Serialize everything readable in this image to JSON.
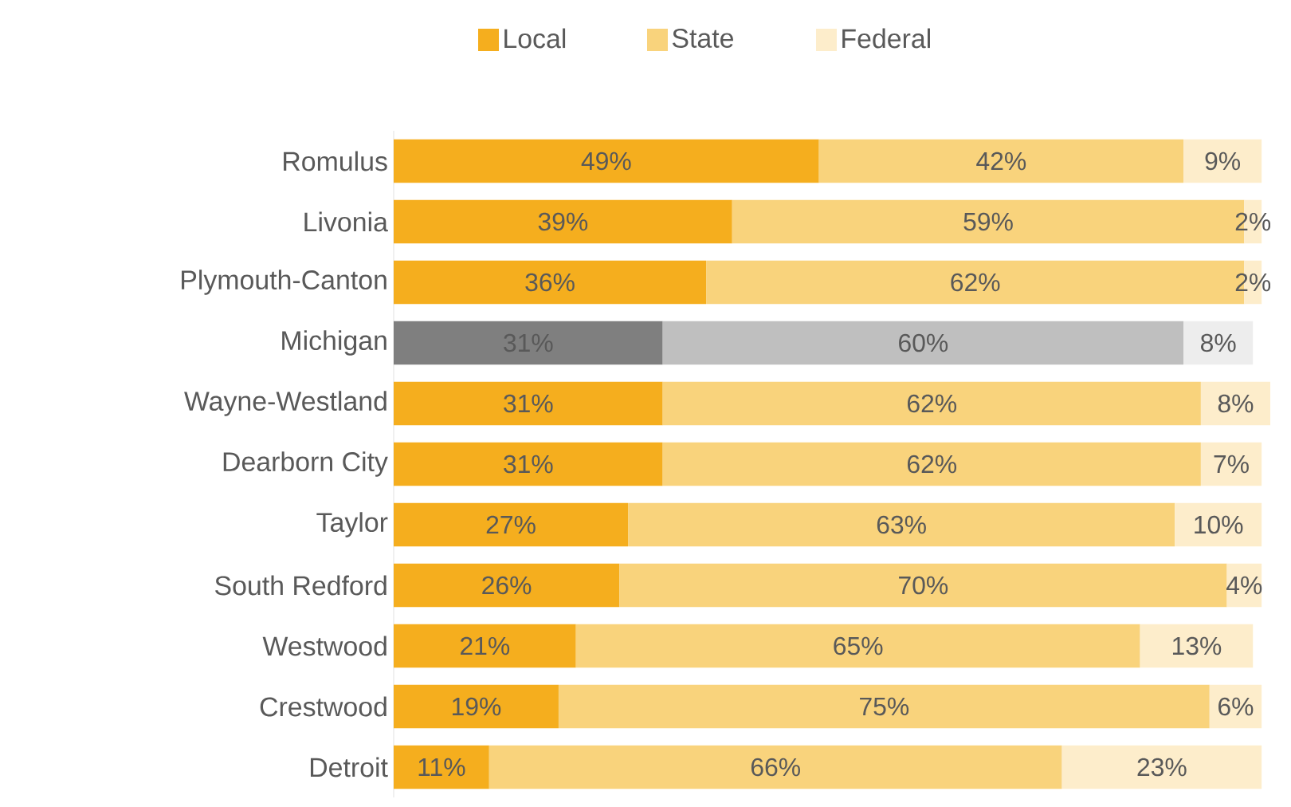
{
  "chart_data": {
    "type": "bar",
    "orientation": "horizontal",
    "stacked": true,
    "legend": "top",
    "xlim": [
      0,
      101
    ],
    "categories": [
      "Romulus",
      "Livonia",
      "Plymouth-Canton",
      "Michigan",
      "Wayne-Westland",
      "Dearborn City",
      "Taylor",
      "South Redford",
      "Westwood",
      "Crestwood",
      "Detroit"
    ],
    "series": [
      {
        "name": "Local",
        "color": "#f5ae1e",
        "values": [
          49,
          39,
          36,
          31,
          31,
          31,
          27,
          26,
          21,
          19,
          11
        ],
        "colors": [
          "#f5ae1e",
          "#f5ae1e",
          "#f5ae1e",
          "#7f7f7f",
          "#f5ae1e",
          "#f5ae1e",
          "#f5ae1e",
          "#f5ae1e",
          "#f5ae1e",
          "#f5ae1e",
          "#f5ae1e"
        ],
        "value_labels": [
          "49%",
          "39%",
          "36%",
          "31%",
          "31%",
          "31%",
          "27%",
          "26%",
          "21%",
          "19%",
          "11%"
        ]
      },
      {
        "name": "State",
        "color": "#f9d37c",
        "values": [
          42,
          59,
          62,
          60,
          62,
          62,
          63,
          70,
          65,
          75,
          66
        ],
        "colors": [
          "#f9d37c",
          "#f9d37c",
          "#f9d37c",
          "#bfbfbf",
          "#f9d37c",
          "#f9d37c",
          "#f9d37c",
          "#f9d37c",
          "#f9d37c",
          "#f9d37c",
          "#f9d37c"
        ],
        "value_labels": [
          "42%",
          "59%",
          "62%",
          "60%",
          "62%",
          "62%",
          "63%",
          "70%",
          "65%",
          "75%",
          "66%"
        ]
      },
      {
        "name": "Federal",
        "color": "#fdedcb",
        "values": [
          9,
          2,
          2,
          8,
          8,
          7,
          10,
          4,
          13,
          6,
          23
        ],
        "colors": [
          "#fdedcb",
          "#fdedcb",
          "#fdedcb",
          "#ededed",
          "#fdedcb",
          "#fdedcb",
          "#fdedcb",
          "#fdedcb",
          "#fdedcb",
          "#fdedcb",
          "#fdedcb"
        ],
        "value_labels": [
          "9%",
          "2%",
          "2%",
          "8%",
          "8%",
          "7%",
          "10%",
          "4%",
          "13%",
          "6%",
          "23%"
        ]
      }
    ]
  }
}
